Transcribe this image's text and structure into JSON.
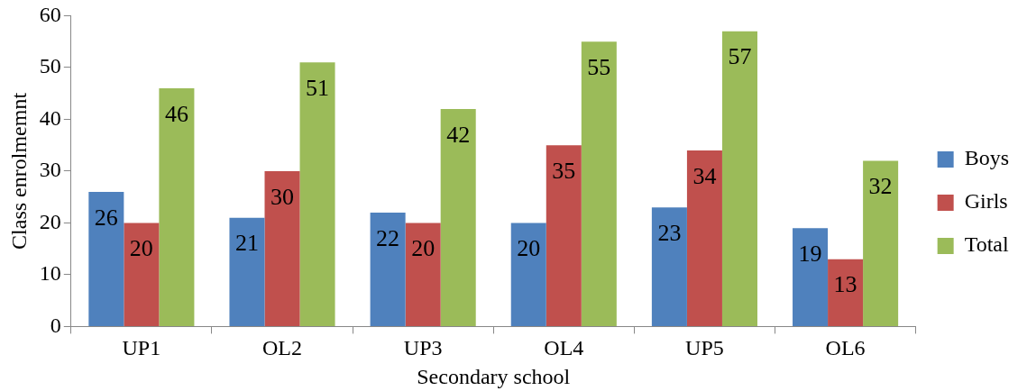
{
  "chart_data": {
    "type": "bar",
    "xlabel": "Secondary school",
    "ylabel": "Class enrolmemnt",
    "categories": [
      "UP1",
      "OL2",
      "UP3",
      "OL4",
      "UP5",
      "OL6"
    ],
    "series": [
      {
        "name": "Boys",
        "color": "#4f81bd",
        "values": [
          26,
          21,
          22,
          20,
          23,
          19
        ]
      },
      {
        "name": "Girls",
        "color": "#c0504d",
        "values": [
          20,
          30,
          20,
          35,
          34,
          13
        ]
      },
      {
        "name": "Total",
        "color": "#9bbb59",
        "values": [
          46,
          51,
          42,
          55,
          57,
          32
        ]
      }
    ],
    "ylim": [
      0,
      60
    ],
    "yticks": [
      0,
      10,
      20,
      30,
      40,
      50,
      60
    ],
    "grid": false,
    "legend": "right",
    "data_labels": true
  }
}
